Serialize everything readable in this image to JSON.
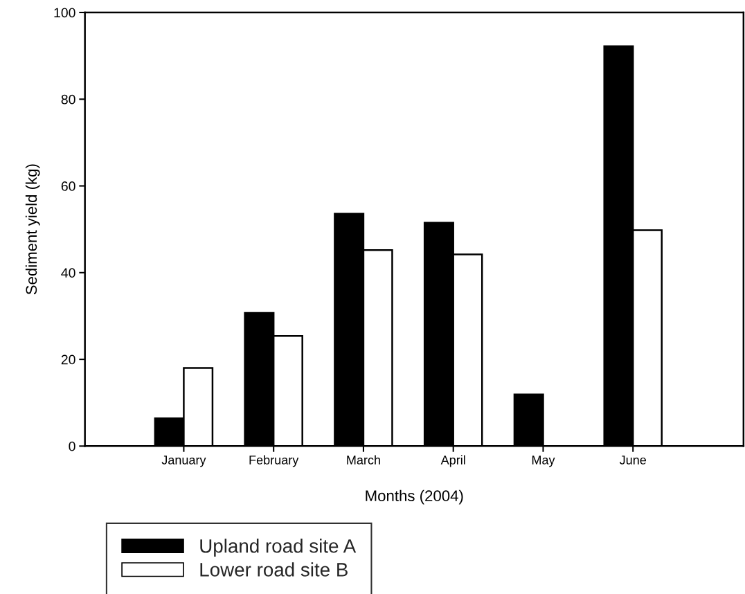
{
  "chart_data": {
    "type": "bar",
    "xlabel": "Months (2004)",
    "ylabel": "Sediment yield (kg)",
    "categories": [
      "January",
      "February",
      "March",
      "April",
      "May",
      "June"
    ],
    "series": [
      {
        "name": "Upland road site A",
        "color": "#000000",
        "values": [
          6.4,
          30.7,
          53.6,
          51.5,
          11.9,
          92.2
        ]
      },
      {
        "name": "Lower road site B",
        "color": "#ffffff",
        "values": [
          18.0,
          25.4,
          45.2,
          44.2,
          null,
          49.8
        ]
      }
    ],
    "ylim": [
      0,
      100
    ],
    "yticks": [
      0,
      20,
      40,
      60,
      80,
      100
    ],
    "grid": false,
    "legend": "bottom left"
  }
}
